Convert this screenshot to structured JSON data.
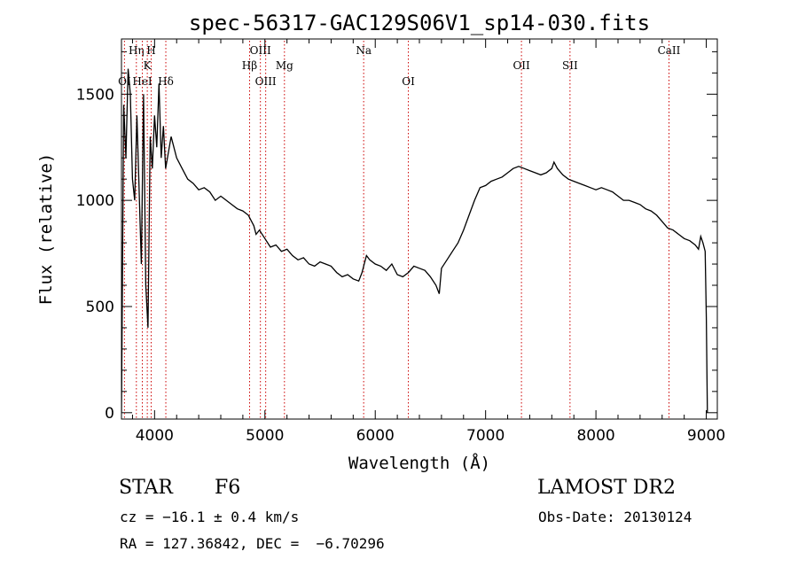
{
  "chart_data": {
    "type": "line",
    "title": "spec-56317-GAC129S06V1_sp14-030.fits",
    "xlabel": "Wavelength (Å)",
    "ylabel": "Flux (relative)",
    "xlim": [
      3700,
      9100
    ],
    "ylim": [
      -30,
      1760
    ],
    "x_ticks": [
      4000,
      5000,
      6000,
      7000,
      8000,
      9000
    ],
    "x_tick_labels": [
      "4000",
      "5000",
      "6000",
      "7000",
      "8000",
      "9000"
    ],
    "y_ticks": [
      0,
      500,
      1000,
      1500
    ],
    "y_tick_labels": [
      "0",
      "500",
      "1000",
      "1500"
    ],
    "grid": false,
    "legend": "none",
    "line_color": "#000000",
    "marker_color": "#cc0000",
    "series": [
      {
        "x": [
          3700,
          3720,
          3740,
          3760,
          3780,
          3800,
          3820,
          3840,
          3860,
          3880,
          3900,
          3920,
          3940,
          3960,
          3980,
          4000,
          4020,
          4040,
          4060,
          4080,
          4100,
          4150,
          4200,
          4250,
          4300,
          4350,
          4400,
          4450,
          4500,
          4550,
          4600,
          4650,
          4700,
          4750,
          4800,
          4850,
          4880,
          4900,
          4920,
          4950,
          5000,
          5050,
          5100,
          5150,
          5200,
          5250,
          5300,
          5350,
          5400,
          5450,
          5500,
          5550,
          5600,
          5650,
          5700,
          5750,
          5800,
          5850,
          5880,
          5900,
          5920,
          5950,
          6000,
          6050,
          6100,
          6150,
          6200,
          6250,
          6300,
          6350,
          6400,
          6450,
          6500,
          6550,
          6580,
          6600,
          6650,
          6700,
          6750,
          6800,
          6850,
          6900,
          6950,
          7000,
          7050,
          7100,
          7150,
          7200,
          7250,
          7300,
          7350,
          7400,
          7450,
          7500,
          7550,
          7600,
          7620,
          7650,
          7700,
          7750,
          7800,
          7850,
          7900,
          7950,
          8000,
          8050,
          8100,
          8150,
          8200,
          8250,
          8300,
          8350,
          8400,
          8450,
          8500,
          8550,
          8600,
          8650,
          8700,
          8750,
          8800,
          8850,
          8900,
          8930,
          8950,
          8970,
          8990,
          9000,
          9010
        ],
        "y": [
          0,
          1450,
          1200,
          1620,
          1500,
          1100,
          1000,
          1400,
          1050,
          700,
          1500,
          600,
          400,
          1300,
          1150,
          1400,
          1250,
          1550,
          1200,
          1350,
          1150,
          1300,
          1200,
          1150,
          1100,
          1080,
          1050,
          1060,
          1040,
          1000,
          1020,
          1000,
          980,
          960,
          950,
          930,
          900,
          880,
          840,
          860,
          820,
          780,
          790,
          760,
          770,
          740,
          720,
          730,
          700,
          690,
          710,
          700,
          690,
          660,
          640,
          650,
          630,
          620,
          660,
          700,
          740,
          720,
          700,
          690,
          670,
          700,
          650,
          640,
          660,
          690,
          680,
          670,
          640,
          600,
          560,
          680,
          720,
          760,
          800,
          860,
          930,
          1000,
          1060,
          1070,
          1090,
          1100,
          1110,
          1130,
          1150,
          1160,
          1150,
          1140,
          1130,
          1120,
          1130,
          1150,
          1180,
          1150,
          1120,
          1100,
          1090,
          1080,
          1070,
          1060,
          1050,
          1060,
          1050,
          1040,
          1020,
          1000,
          1000,
          990,
          980,
          960,
          950,
          930,
          900,
          870,
          860,
          840,
          820,
          810,
          790,
          770,
          830,
          800,
          760,
          450,
          0
        ]
      }
    ],
    "annotations": [
      {
        "label": "OI",
        "wavelength": 3727,
        "row": 3
      },
      {
        "label": "Hη",
        "wavelength": 3835,
        "row": 1
      },
      {
        "label": "HeI",
        "wavelength": 3889,
        "row": 3
      },
      {
        "label": "K",
        "wavelength": 3934,
        "row": 2
      },
      {
        "label": "H",
        "wavelength": 3969,
        "row": 1
      },
      {
        "label": "Hδ",
        "wavelength": 4102,
        "row": 3
      },
      {
        "label": "Hβ",
        "wavelength": 4861,
        "row": 2
      },
      {
        "label": "OIII",
        "wavelength": 4959,
        "row": 1
      },
      {
        "label": "OIII",
        "wavelength": 5007,
        "row": 3
      },
      {
        "label": "Mg",
        "wavelength": 5177,
        "row": 2
      },
      {
        "label": "Na",
        "wavelength": 5895,
        "row": 1
      },
      {
        "label": "OI",
        "wavelength": 6300,
        "row": 3
      },
      {
        "label": "OII",
        "wavelength": 7325,
        "row": 2
      },
      {
        "label": "SII",
        "wavelength": 7765,
        "row": 2
      },
      {
        "label": "CaII",
        "wavelength": 8662,
        "row": 1
      }
    ]
  },
  "info": {
    "class": "STAR",
    "subclass": "F6",
    "survey": "LAMOST DR2",
    "cz": "cz = −16.1 ± 0.4 km/s",
    "obs_date": "Obs-Date: 20130124",
    "radec": "RA = 127.36842, DEC =  −6.70296"
  }
}
